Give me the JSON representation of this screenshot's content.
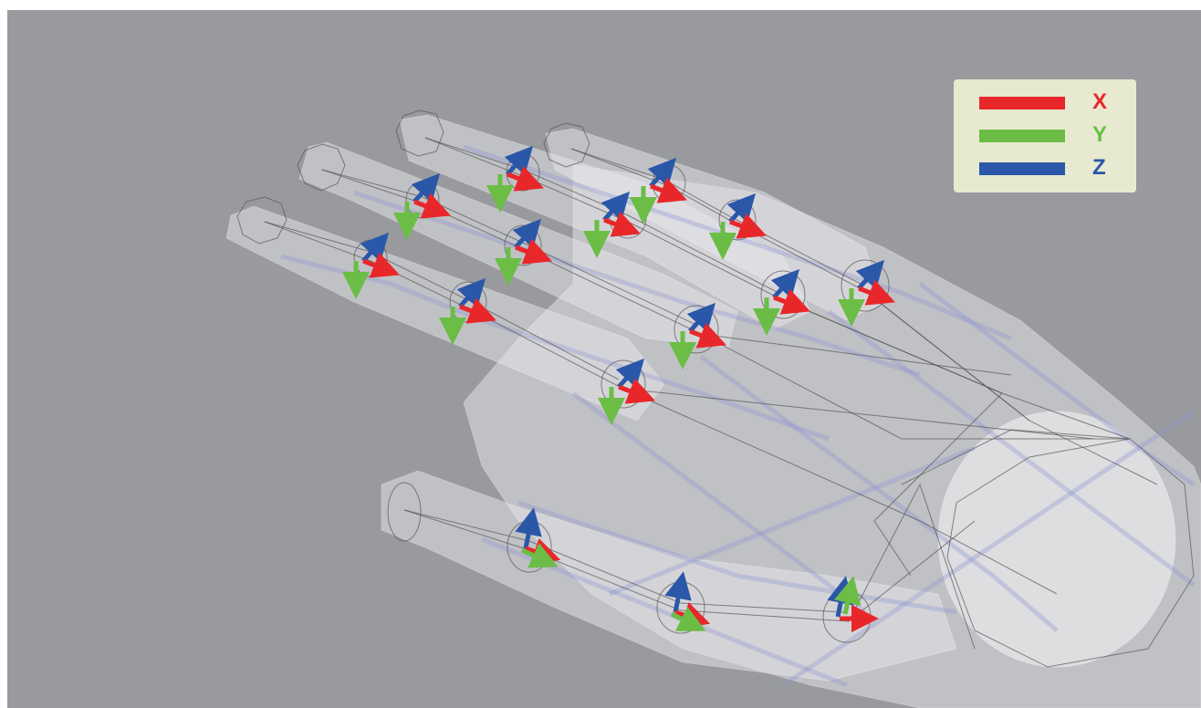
{
  "legend": {
    "items": [
      {
        "label": "X",
        "color": "#e8272a"
      },
      {
        "label": "Y",
        "color": "#6bbd45"
      },
      {
        "label": "Z",
        "color": "#2a57a8"
      }
    ]
  },
  "colors": {
    "background": "#999a9e",
    "skin": "#e8e8ec",
    "wire": "#555555",
    "mesh_blue": "#8c96d2"
  },
  "joint_count": 17
}
